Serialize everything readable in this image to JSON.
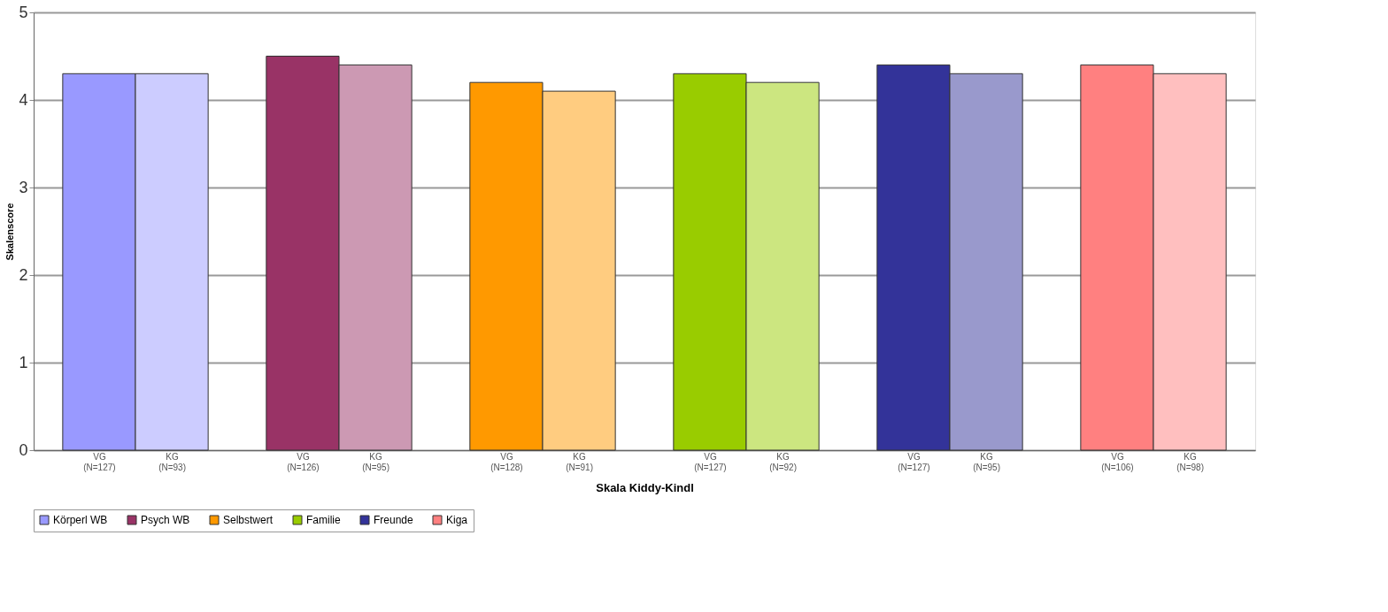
{
  "chart_data": {
    "type": "bar",
    "xlabel": "Skala Kiddy-Kindl",
    "ylabel": "Skalenscore",
    "categories": [
      "VG (N=127)",
      "KG (N=93)",
      "VG (N=126)",
      "KG (N=95)",
      "VG (N=128)",
      "KG (N=91)",
      "VG (N=127)",
      "KG (N=92)",
      "VG (N=127)",
      "KG (N=95)",
      "VG (N=106)",
      "KG (N=98)"
    ],
    "series": [
      {
        "name": "Körperl WB",
        "color": "#9999ff",
        "colors": [
          "#9999ff",
          "#ccccff",
          null,
          null,
          null,
          null,
          null,
          null,
          null,
          null,
          null,
          null
        ],
        "values": [
          4.3,
          4.3,
          null,
          null,
          null,
          null,
          null,
          null,
          null,
          null,
          null,
          null
        ]
      },
      {
        "name": "Psych WB",
        "color": "#993366",
        "colors": [
          null,
          null,
          "#993366",
          "#cc99b3",
          null,
          null,
          null,
          null,
          null,
          null,
          null,
          null
        ],
        "values": [
          null,
          null,
          4.5,
          4.4,
          null,
          null,
          null,
          null,
          null,
          null,
          null,
          null
        ]
      },
      {
        "name": "Selbstwert",
        "color": "#ff9900",
        "colors": [
          null,
          null,
          null,
          null,
          "#ff9900",
          "#ffcc80",
          null,
          null,
          null,
          null,
          null,
          null
        ],
        "values": [
          null,
          null,
          null,
          null,
          4.2,
          4.1,
          null,
          null,
          null,
          null,
          null,
          null
        ]
      },
      {
        "name": "Familie",
        "color": "#99cc00",
        "colors": [
          null,
          null,
          null,
          null,
          null,
          null,
          "#99cc00",
          "#cce680",
          null,
          null,
          null,
          null
        ],
        "values": [
          null,
          null,
          null,
          null,
          null,
          null,
          4.3,
          4.2,
          null,
          null,
          null,
          null
        ]
      },
      {
        "name": "Freunde",
        "color": "#333399",
        "colors": [
          null,
          null,
          null,
          null,
          null,
          null,
          null,
          null,
          "#333399",
          "#9999cc",
          null,
          null
        ],
        "values": [
          null,
          null,
          null,
          null,
          null,
          null,
          null,
          null,
          4.4,
          4.3,
          null,
          null
        ]
      },
      {
        "name": "Kiga",
        "color": "#ff8080",
        "colors": [
          null,
          null,
          null,
          null,
          null,
          null,
          null,
          null,
          null,
          null,
          "#ff8080",
          "#ffbfbf"
        ],
        "values": [
          null,
          null,
          null,
          null,
          null,
          null,
          null,
          null,
          null,
          null,
          4.4,
          4.3
        ]
      }
    ],
    "ylim": [
      0,
      5
    ],
    "yticks": [
      0,
      1,
      2,
      3,
      4,
      5
    ],
    "grid": "y",
    "legend": "bottom"
  }
}
